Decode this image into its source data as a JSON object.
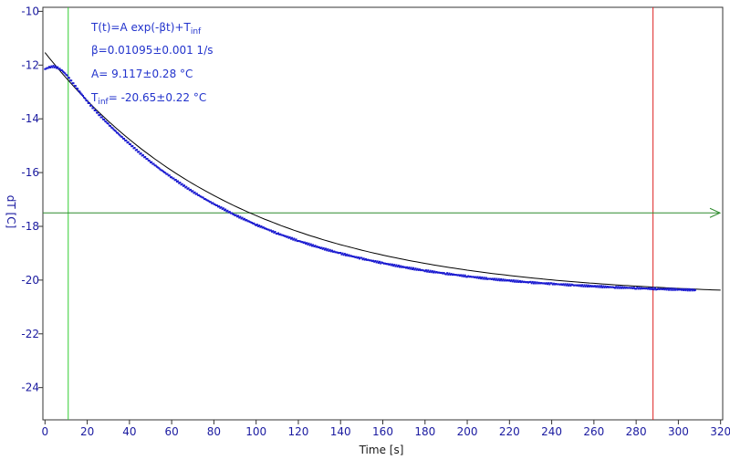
{
  "chart_data": {
    "type": "scatter",
    "xlabel": "Time [s]",
    "ylabel": "dT [C]",
    "xlim": [
      -1,
      321
    ],
    "ylim": [
      -25.2,
      -9.85
    ],
    "x_ticks": [
      0,
      20,
      40,
      60,
      80,
      100,
      120,
      140,
      160,
      180,
      200,
      220,
      240,
      260,
      280,
      300,
      320
    ],
    "y_ticks": [
      -10,
      -12,
      -14,
      -16,
      -18,
      -20,
      -22,
      -24
    ],
    "x_tick_labels": [
      "0",
      "20",
      "40",
      "60",
      "80",
      "100",
      "120",
      "140",
      "160",
      "180",
      "200",
      "220",
      "240",
      "260",
      "280",
      "300",
      "320"
    ],
    "y_tick_labels": [
      "-10",
      "-12",
      "-14",
      "-16",
      "-18",
      "-20",
      "-22",
      "-24"
    ],
    "fit": {
      "A": 9.117,
      "beta": 0.01095,
      "T_inf": -20.65,
      "x_range": [
        0,
        320
      ]
    },
    "series": [
      {
        "color": "#1a1ad0",
        "points": [
          [
            0,
            -12.15
          ],
          [
            2,
            -12.08
          ],
          [
            4,
            -12.05
          ],
          [
            6,
            -12.1
          ],
          [
            8,
            -12.2
          ],
          [
            10,
            -12.35
          ],
          [
            12,
            -12.55
          ],
          [
            14,
            -12.75
          ],
          [
            16,
            -12.95
          ],
          [
            18,
            -13.15
          ],
          [
            20,
            -13.35
          ],
          [
            25,
            -13.8
          ],
          [
            30,
            -14.2
          ],
          [
            35,
            -14.58
          ],
          [
            40,
            -14.93
          ],
          [
            45,
            -15.28
          ],
          [
            50,
            -15.6
          ],
          [
            55,
            -15.9
          ],
          [
            60,
            -16.18
          ],
          [
            65,
            -16.45
          ],
          [
            70,
            -16.71
          ],
          [
            75,
            -16.95
          ],
          [
            80,
            -17.17
          ],
          [
            90,
            -17.58
          ],
          [
            100,
            -17.94
          ],
          [
            110,
            -18.26
          ],
          [
            120,
            -18.54
          ],
          [
            130,
            -18.79
          ],
          [
            140,
            -19.01
          ],
          [
            150,
            -19.2
          ],
          [
            160,
            -19.37
          ],
          [
            170,
            -19.52
          ],
          [
            180,
            -19.65
          ],
          [
            190,
            -19.76
          ],
          [
            200,
            -19.86
          ],
          [
            210,
            -19.95
          ],
          [
            220,
            -20.02
          ],
          [
            230,
            -20.09
          ],
          [
            240,
            -20.14
          ],
          [
            250,
            -20.19
          ],
          [
            260,
            -20.23
          ],
          [
            270,
            -20.27
          ],
          [
            280,
            -20.3
          ],
          [
            290,
            -20.33
          ],
          [
            300,
            -20.35
          ],
          [
            308,
            -20.37
          ]
        ]
      }
    ],
    "markers": {
      "green_vertical_x": 11,
      "red_vertical_x": 288,
      "green_horizontal_y": -17.5,
      "colors": {
        "green": "#33cc33",
        "red": "#dd2222",
        "green_h": "#2e8b2e",
        "fit": "#000000"
      }
    }
  },
  "annotations": {
    "eq_main": "T(t)=A exp(-βt)+T",
    "eq_sub": "inf",
    "beta": "β=0.01095±0.001 1/s",
    "amp": "A= 9.117±0.28 °C",
    "tinf_main": "T",
    "tinf_sub": "inf",
    "tinf_rest": "= -20.65±0.22 °C"
  }
}
